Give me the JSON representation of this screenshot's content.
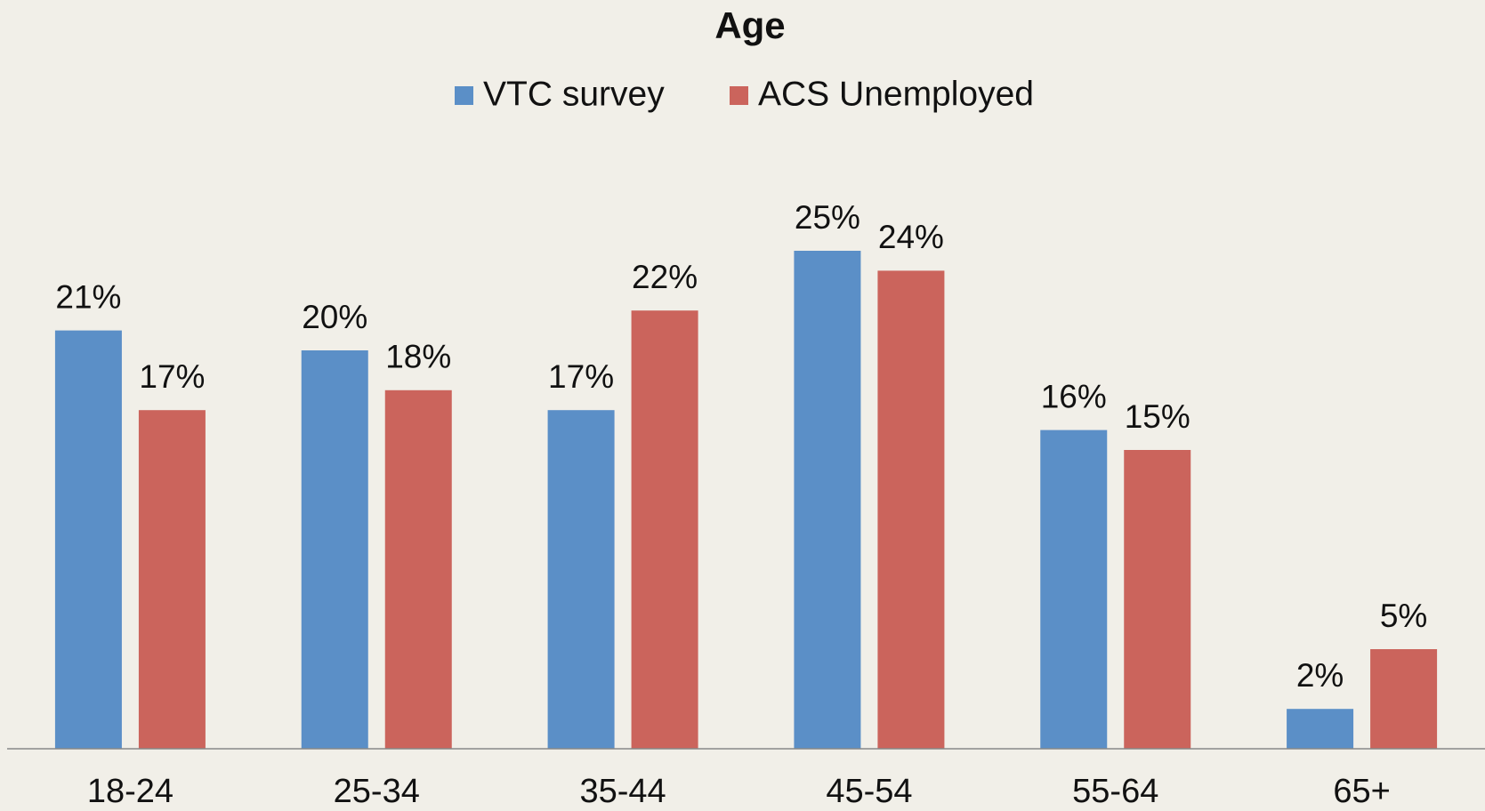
{
  "chart_data": {
    "type": "bar",
    "title": "Age",
    "categories": [
      "18-24",
      "25-34",
      "35-44",
      "45-54",
      "55-64",
      "65+"
    ],
    "series": [
      {
        "name": "VTC survey",
        "color": "#5b8fc7",
        "values": [
          21,
          20,
          17,
          25,
          16,
          2
        ],
        "value_labels": [
          "21%",
          "20%",
          "17%",
          "25%",
          "16%",
          "2%"
        ]
      },
      {
        "name": "ACS Unemployed",
        "color": "#cb645c",
        "values": [
          17,
          18,
          22,
          24,
          15,
          5
        ],
        "value_labels": [
          "17%",
          "18%",
          "22%",
          "24%",
          "15%",
          "5%"
        ]
      }
    ],
    "legend": "top"
  }
}
